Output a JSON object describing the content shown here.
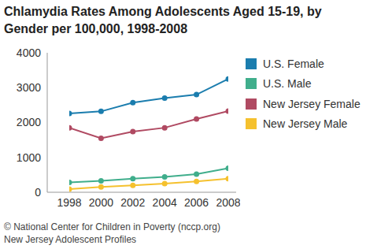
{
  "chart_data": {
    "type": "line",
    "title": "Chlamydia Rates Among Adolescents Aged 15-19, by Gender per 100,000, 1998-2008",
    "annotations": [
      "© National Center for Children in Poverty (nccp.org)",
      "New Jersey Adolescent Profiles"
    ],
    "x": [
      1998,
      2000,
      2002,
      2004,
      2006,
      2008
    ],
    "series": [
      {
        "name": "U.S. Female",
        "color": "#1b7dae",
        "values": [
          2260,
          2320,
          2570,
          2700,
          2800,
          3250
        ]
      },
      {
        "name": "U.S. Male",
        "color": "#40ae8c",
        "values": [
          280,
          330,
          390,
          440,
          520,
          690
        ]
      },
      {
        "name": "New Jersey Female",
        "color": "#b04a62",
        "values": [
          1850,
          1550,
          1740,
          1850,
          2100,
          2330
        ]
      },
      {
        "name": "New Jersey Male",
        "color": "#f5c12e",
        "values": [
          90,
          150,
          200,
          250,
          310,
          390
        ]
      }
    ],
    "xlim": [
      1998,
      2008
    ],
    "xticks": [
      1998,
      2000,
      2002,
      2004,
      2006,
      2008
    ],
    "ylim": [
      0,
      4000
    ],
    "yticks": [
      0,
      1000,
      2000,
      3000,
      4000
    ],
    "grid": false,
    "legend": "right",
    "marker": "circle"
  }
}
